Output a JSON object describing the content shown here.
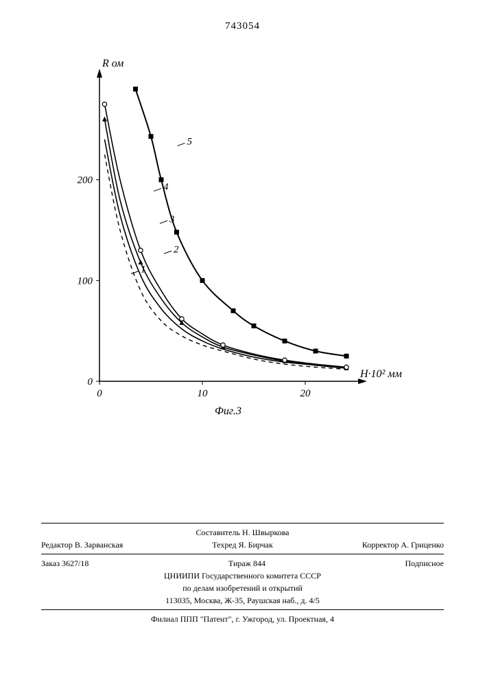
{
  "page_number": "743054",
  "chart": {
    "type": "line",
    "y_label": "R ом",
    "x_label": "Н·10² мм",
    "caption": "Фиг.3",
    "x_ticks": [
      0,
      10,
      20
    ],
    "y_ticks": [
      0,
      100,
      200
    ],
    "x_range": [
      0,
      25
    ],
    "y_range": [
      0,
      300
    ],
    "axis_color": "#000000",
    "background_color": "#ffffff",
    "series": [
      {
        "label": "1",
        "dashed": true,
        "marker": "none",
        "color": "#000000",
        "line_width": 1.4,
        "points": [
          [
            0.5,
            225
          ],
          [
            2,
            150
          ],
          [
            4,
            90
          ],
          [
            6,
            60
          ],
          [
            8,
            45
          ],
          [
            10,
            36
          ],
          [
            12,
            30
          ],
          [
            15,
            22
          ],
          [
            18,
            17
          ],
          [
            21,
            14
          ],
          [
            24,
            12
          ]
        ]
      },
      {
        "label": "2",
        "dashed": false,
        "marker": "none",
        "color": "#000000",
        "line_width": 1.6,
        "points": [
          [
            0.5,
            240
          ],
          [
            2,
            165
          ],
          [
            4,
            105
          ],
          [
            6,
            72
          ],
          [
            8,
            52
          ],
          [
            10,
            40
          ],
          [
            12,
            32
          ],
          [
            15,
            24
          ],
          [
            18,
            19
          ],
          [
            21,
            16
          ],
          [
            24,
            13
          ]
        ]
      },
      {
        "label": "3",
        "dashed": false,
        "marker": "triangle",
        "color": "#000000",
        "line_width": 1.6,
        "points": [
          [
            0.5,
            260
          ],
          [
            2,
            180
          ],
          [
            4,
            118
          ],
          [
            6,
            82
          ],
          [
            8,
            58
          ],
          [
            10,
            44
          ],
          [
            12,
            34
          ],
          [
            15,
            26
          ],
          [
            18,
            20
          ],
          [
            21,
            16
          ],
          [
            24,
            13
          ]
        ]
      },
      {
        "label": "4",
        "dashed": false,
        "marker": "circle",
        "color": "#000000",
        "line_width": 1.6,
        "points": [
          [
            0.5,
            275
          ],
          [
            2,
            200
          ],
          [
            4,
            130
          ],
          [
            6,
            90
          ],
          [
            8,
            62
          ],
          [
            10,
            47
          ],
          [
            12,
            36
          ],
          [
            15,
            27
          ],
          [
            18,
            21
          ],
          [
            21,
            17
          ],
          [
            24,
            14
          ]
        ]
      },
      {
        "label": "5",
        "dashed": false,
        "marker": "square",
        "color": "#000000",
        "line_width": 2.0,
        "points": [
          [
            3.5,
            290
          ],
          [
            5,
            243
          ],
          [
            6,
            200
          ],
          [
            7.5,
            148
          ],
          [
            10,
            100
          ],
          [
            13,
            70
          ],
          [
            15,
            55
          ],
          [
            18,
            40
          ],
          [
            21,
            30
          ],
          [
            24,
            25
          ]
        ]
      }
    ],
    "curve_label_positions": {
      "1": [
        4,
        108
      ],
      "2": [
        7.2,
        128
      ],
      "3": [
        6.8,
        158
      ],
      "4": [
        6.2,
        190
      ],
      "5": [
        8.5,
        235
      ]
    }
  },
  "footer": {
    "compiler": "Составитель Н. Швыркова",
    "editor": "Редактор В. Зарванская",
    "techred": "Техред Я. Бирчак",
    "corrector": "Корректор А. Гриценко",
    "order": "Заказ 3627/18",
    "tirage": "Тираж 844",
    "subscription": "Подписное",
    "org1": "ЦНИИПИ Государственного комитета СССР",
    "org2": "по делам изобретений и открытий",
    "address": "113035, Москва, Ж-35, Раушская наб., д. 4/5",
    "branch": "Филиал ППП \"Патент\", г. Ужгород, ул. Проектная, 4"
  }
}
